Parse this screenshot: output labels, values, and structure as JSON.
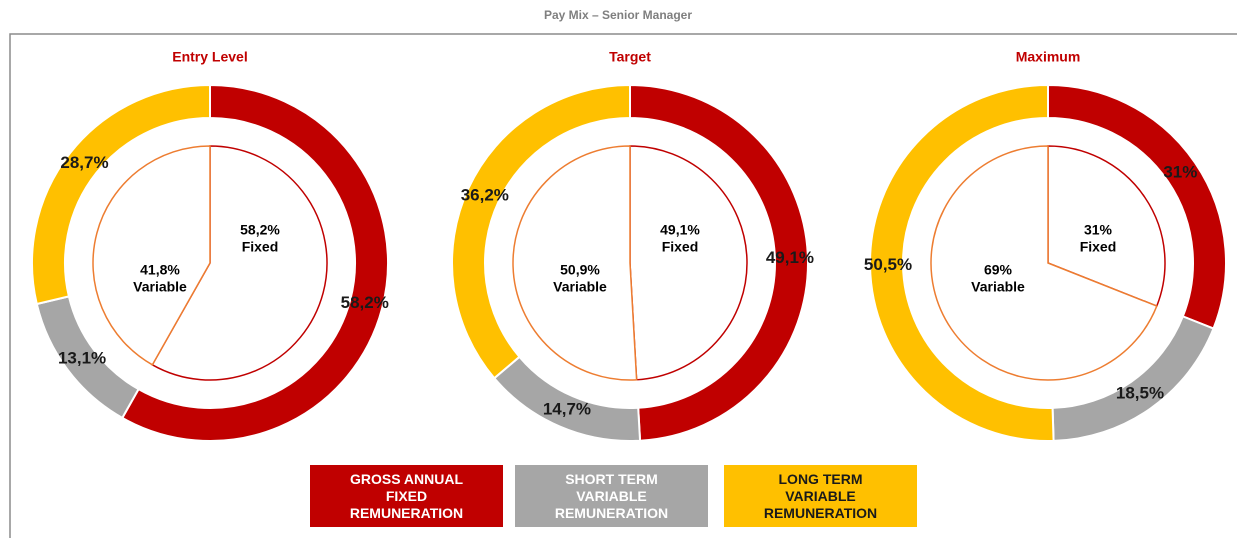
{
  "title": "Pay Mix –  Senior Manager",
  "legend": [
    {
      "name": "GROSS ANNUAL FIXED REMUNERATION",
      "color": "#c00000"
    },
    {
      "name": "SHORT TERM VARIABLE REMUNERATION",
      "color": "#a6a6a6"
    },
    {
      "name": "LONG TERM VARIABLE REMUNERATION",
      "color": "#ffc000"
    }
  ],
  "chart_data": [
    {
      "type": "donut",
      "title": "Entry Level",
      "outer": {
        "values": [
          58.2,
          13.1,
          28.7
        ],
        "value_labels": [
          "58,2%",
          "13,1%",
          "28,7%"
        ]
      },
      "inner": {
        "categories": [
          "Fixed",
          "Variable"
        ],
        "values": [
          58.2,
          41.8
        ],
        "value_labels": [
          "58,2%",
          "41,8%"
        ]
      }
    },
    {
      "type": "donut",
      "title": "Target",
      "outer": {
        "values": [
          49.1,
          14.7,
          36.2
        ],
        "value_labels": [
          "49,1%",
          "14,7%",
          "36,2%"
        ]
      },
      "inner": {
        "categories": [
          "Fixed",
          "Variable"
        ],
        "values": [
          49.1,
          50.9
        ],
        "value_labels": [
          "49,1%",
          "50,9%"
        ]
      }
    },
    {
      "type": "donut",
      "title": "Maximum",
      "outer": {
        "values": [
          31,
          18.5,
          50.5
        ],
        "value_labels": [
          "31%",
          "18,5%",
          "50,5%"
        ]
      },
      "inner": {
        "categories": [
          "Fixed",
          "Variable"
        ],
        "values": [
          31,
          69
        ],
        "value_labels": [
          "31%",
          "69%"
        ]
      }
    }
  ]
}
